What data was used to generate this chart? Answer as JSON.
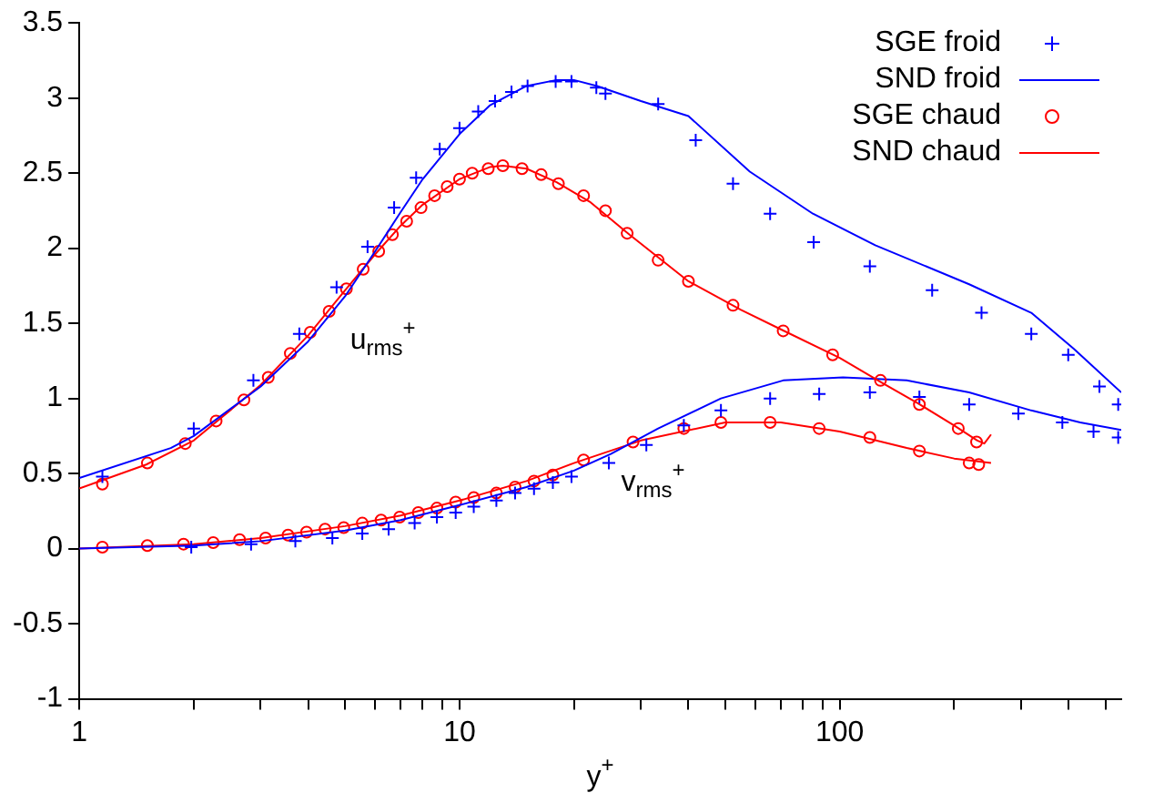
{
  "chart_data": {
    "type": "scatter",
    "xlabel": "y$^{+}$",
    "log": "x",
    "xlim": [
      1,
      550
    ],
    "ylim": [
      -1,
      3.5
    ],
    "xticks": [
      1,
      {
        "value": 2,
        "label": null
      },
      {
        "value": 3,
        "label": null
      },
      {
        "value": 4,
        "label": null
      },
      {
        "value": 5,
        "label": null
      },
      {
        "value": 6,
        "label": null
      },
      {
        "value": 7,
        "label": null
      },
      {
        "value": 8,
        "label": null
      },
      {
        "value": 9,
        "label": null
      },
      10,
      {
        "value": 20,
        "label": null
      },
      {
        "value": 30,
        "label": null
      },
      {
        "value": 40,
        "label": null
      },
      {
        "value": 50,
        "label": null
      },
      {
        "value": 60,
        "label": null
      },
      {
        "value": 70,
        "label": null
      },
      {
        "value": 80,
        "label": null
      },
      {
        "value": 90,
        "label": null
      },
      100,
      {
        "value": 200,
        "label": null
      },
      {
        "value": 300,
        "label": null
      },
      {
        "value": 400,
        "label": null
      },
      {
        "value": 500,
        "label": null
      }
    ],
    "yticks": [
      -1,
      -0.5,
      0,
      0.5,
      1,
      1.5,
      2,
      2.5,
      3,
      3.5
    ],
    "grid": false,
    "legend": "top right",
    "annotations": [
      "u$_{rms}$$^{+}$",
      "v$_{rms}$$^{+}$"
    ],
    "series": [
      {
        "name": "SGE froid",
        "type": "scatter",
        "marker": "cross",
        "color": "#0000ff",
        "x": [
          1.15,
          2,
          2.87,
          3.79,
          4.75,
          5.73,
          6.73,
          7.69,
          8.87,
          10,
          11.2,
          12.4,
          13.7,
          15.1,
          17.9,
          19.7,
          22.9,
          24.2,
          33.3,
          41.8,
          52.4,
          65.6,
          85.4,
          120,
          175,
          236,
          319,
          399,
          482,
          540
        ],
        "values": [
          0.48,
          0.8,
          1.12,
          1.43,
          1.74,
          2.01,
          2.27,
          2.47,
          2.66,
          2.8,
          2.91,
          2.98,
          3.04,
          3.08,
          3.11,
          3.11,
          3.07,
          3.03,
          2.96,
          2.72,
          2.43,
          2.23,
          2.04,
          1.88,
          1.72,
          1.57,
          1.43,
          1.29,
          1.08,
          0.96
        ]
      },
      {
        "name": "SND froid",
        "type": "line",
        "marker": "none",
        "color": "#0000ff",
        "x": [
          1,
          1.74,
          2,
          3,
          4,
          5,
          6,
          7,
          8,
          10,
          12,
          15,
          18,
          20,
          23,
          30,
          40,
          58,
          85,
          124,
          219,
          319,
          413,
          550
        ],
        "values": [
          0.47,
          0.67,
          0.75,
          1.08,
          1.38,
          1.68,
          1.98,
          2.24,
          2.46,
          2.76,
          2.95,
          3.08,
          3.12,
          3.12,
          3.08,
          2.98,
          2.88,
          2.51,
          2.23,
          2.02,
          1.76,
          1.57,
          1.33,
          1.04
        ]
      },
      {
        "name": "SGE chaud",
        "type": "scatter",
        "marker": "circle",
        "color": "#ff0000",
        "x": [
          1.15,
          1.51,
          1.9,
          2.29,
          2.71,
          3.14,
          3.59,
          4.05,
          4.54,
          5.04,
          5.58,
          6.13,
          6.66,
          7.26,
          7.92,
          8.6,
          9.28,
          10,
          10.8,
          11.9,
          13,
          14.6,
          16.4,
          18.2,
          21.2,
          24.2,
          27.6,
          33.3,
          40,
          52.4,
          71,
          95.8,
          128,
          162,
          205,
          229
        ],
        "values": [
          0.43,
          0.57,
          0.7,
          0.85,
          0.99,
          1.14,
          1.3,
          1.44,
          1.58,
          1.73,
          1.86,
          1.98,
          2.09,
          2.18,
          2.27,
          2.35,
          2.41,
          2.46,
          2.5,
          2.53,
          2.55,
          2.53,
          2.49,
          2.43,
          2.35,
          2.25,
          2.1,
          1.92,
          1.78,
          1.62,
          1.45,
          1.29,
          1.12,
          0.96,
          0.8,
          0.71
        ]
      },
      {
        "name": "SND chaud",
        "type": "line",
        "marker": "none",
        "color": "#ff0000",
        "x": [
          1,
          1.5,
          2,
          3,
          4,
          5,
          6,
          7,
          8,
          10,
          12,
          13,
          15,
          18,
          22,
          28,
          40,
          55,
          70,
          100,
          130,
          160,
          200,
          230,
          240,
          250
        ],
        "values": [
          0.4,
          0.56,
          0.72,
          1.09,
          1.42,
          1.72,
          1.96,
          2.15,
          2.29,
          2.46,
          2.54,
          2.55,
          2.53,
          2.44,
          2.31,
          2.09,
          1.78,
          1.59,
          1.46,
          1.27,
          1.1,
          0.97,
          0.82,
          0.72,
          0.7,
          0.76
        ]
      },
      {
        "type": "scatter",
        "marker": "cross",
        "color": "#0000ff",
        "x": [
          1.97,
          2.83,
          3.7,
          4.63,
          5.55,
          6.51,
          7.62,
          8.72,
          9.77,
          10.9,
          12.5,
          14,
          15.7,
          17.6,
          19.7,
          24.7,
          31,
          38.9,
          48.7,
          65.6,
          88.3,
          120,
          162,
          219,
          295,
          385,
          465,
          540
        ],
        "values": [
          0.01,
          0.03,
          0.05,
          0.07,
          0.1,
          0.13,
          0.17,
          0.21,
          0.24,
          0.28,
          0.32,
          0.37,
          0.4,
          0.44,
          0.48,
          0.57,
          0.69,
          0.82,
          0.92,
          1,
          1.03,
          1.04,
          1.01,
          0.96,
          0.9,
          0.84,
          0.78,
          0.74
        ]
      },
      {
        "type": "line",
        "marker": "none",
        "color": "#0000ff",
        "x": [
          1,
          2,
          3,
          5,
          7,
          10,
          15,
          20,
          25,
          33.3,
          48.7,
          71,
          102,
          150,
          219,
          319,
          429,
          550
        ],
        "values": [
          0,
          0.02,
          0.05,
          0.12,
          0.19,
          0.29,
          0.41,
          0.52,
          0.63,
          0.8,
          1,
          1.12,
          1.14,
          1.12,
          1.04,
          0.92,
          0.84,
          0.79
        ]
      },
      {
        "type": "scatter",
        "marker": "circle",
        "color": "#ff0000",
        "x": [
          1.15,
          1.51,
          1.88,
          2.25,
          2.64,
          3.09,
          3.54,
          3.96,
          4.43,
          4.96,
          5.55,
          6.22,
          6.96,
          7.79,
          8.72,
          9.77,
          10.9,
          12.5,
          14,
          15.7,
          17.6,
          21.2,
          28.6,
          38.9,
          48.7,
          65.6,
          88.3,
          120,
          162,
          219,
          232
        ],
        "values": [
          0.01,
          0.02,
          0.03,
          0.04,
          0.06,
          0.07,
          0.09,
          0.11,
          0.13,
          0.14,
          0.17,
          0.19,
          0.21,
          0.24,
          0.27,
          0.31,
          0.34,
          0.37,
          0.41,
          0.45,
          0.49,
          0.59,
          0.71,
          0.8,
          0.84,
          0.84,
          0.8,
          0.74,
          0.65,
          0.57,
          0.56
        ]
      },
      {
        "type": "line",
        "marker": "none",
        "color": "#ff0000",
        "x": [
          1,
          2,
          3,
          5,
          7,
          10,
          15,
          20,
          30,
          50,
          70,
          100,
          150,
          200,
          250
        ],
        "values": [
          0,
          0.03,
          0.07,
          0.15,
          0.22,
          0.32,
          0.45,
          0.57,
          0.72,
          0.84,
          0.84,
          0.78,
          0.67,
          0.6,
          0.57
        ]
      }
    ]
  }
}
